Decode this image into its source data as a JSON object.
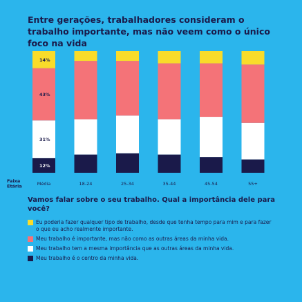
{
  "title": "Entre gerações, trabalhadores consideram o trabalho importante, mas não veem como o único foco na vida",
  "question": "Vamos falar sobre o seu trabalho. Qual a importância dele para você?",
  "axis_label": "Faixa Etária",
  "chart_data": {
    "type": "bar",
    "stacked": true,
    "title": "Entre gerações, trabalhadores consideram o trabalho importante, mas não veem como o único foco na vida",
    "xlabel": "Faixa Etária",
    "ylabel": "",
    "ylim": [
      0,
      100
    ],
    "grid": false,
    "legend_position": "bottom",
    "categories": [
      "Média",
      "18-24",
      "25-34",
      "35-44",
      "45-54",
      "55+"
    ],
    "series": [
      {
        "name": "Meu trabalho é o centro da minha vida.",
        "color": "#1A1A4A",
        "values": [
          12,
          15,
          16,
          15,
          13,
          11
        ]
      },
      {
        "name": "Meu trabalho tem a mesma importância que as outras áreas da minha vida.",
        "color": "#FFFFFF",
        "values": [
          31,
          29,
          31,
          29,
          33,
          30
        ]
      },
      {
        "name": "Meu trabalho é importante, mas não como as outras áreas da minha vida.",
        "color": "#F47378",
        "values": [
          43,
          48,
          45,
          46,
          44,
          48
        ]
      },
      {
        "name": "Eu poderia fazer qualquer tipo de trabalho, desde que tenha tempo para mim e para fazer o que eu acho realmente importante.",
        "color": "#F9DC2A",
        "values": [
          14,
          8,
          8,
          10,
          10,
          11
        ]
      }
    ],
    "data_labels": {
      "category": "Média",
      "labels": [
        "12%",
        "31%",
        "43%",
        "14%"
      ]
    }
  },
  "legend": [
    {
      "color": "#F9DC2A",
      "label": "Eu poderia fazer qualquer tipo de trabalho, desde que tenha tempo para mim e para fazer o que eu acho realmente importante."
    },
    {
      "color": "#F47378",
      "label": "Meu trabalho é importante, mas não como as outras áreas da minha vida."
    },
    {
      "color": "#FFFFFF",
      "label": "Meu trabalho tem a mesma importância que as outras áreas da minha vida."
    },
    {
      "color": "#1A1A4A",
      "label": "Meu trabalho é o centro da minha vida."
    }
  ]
}
